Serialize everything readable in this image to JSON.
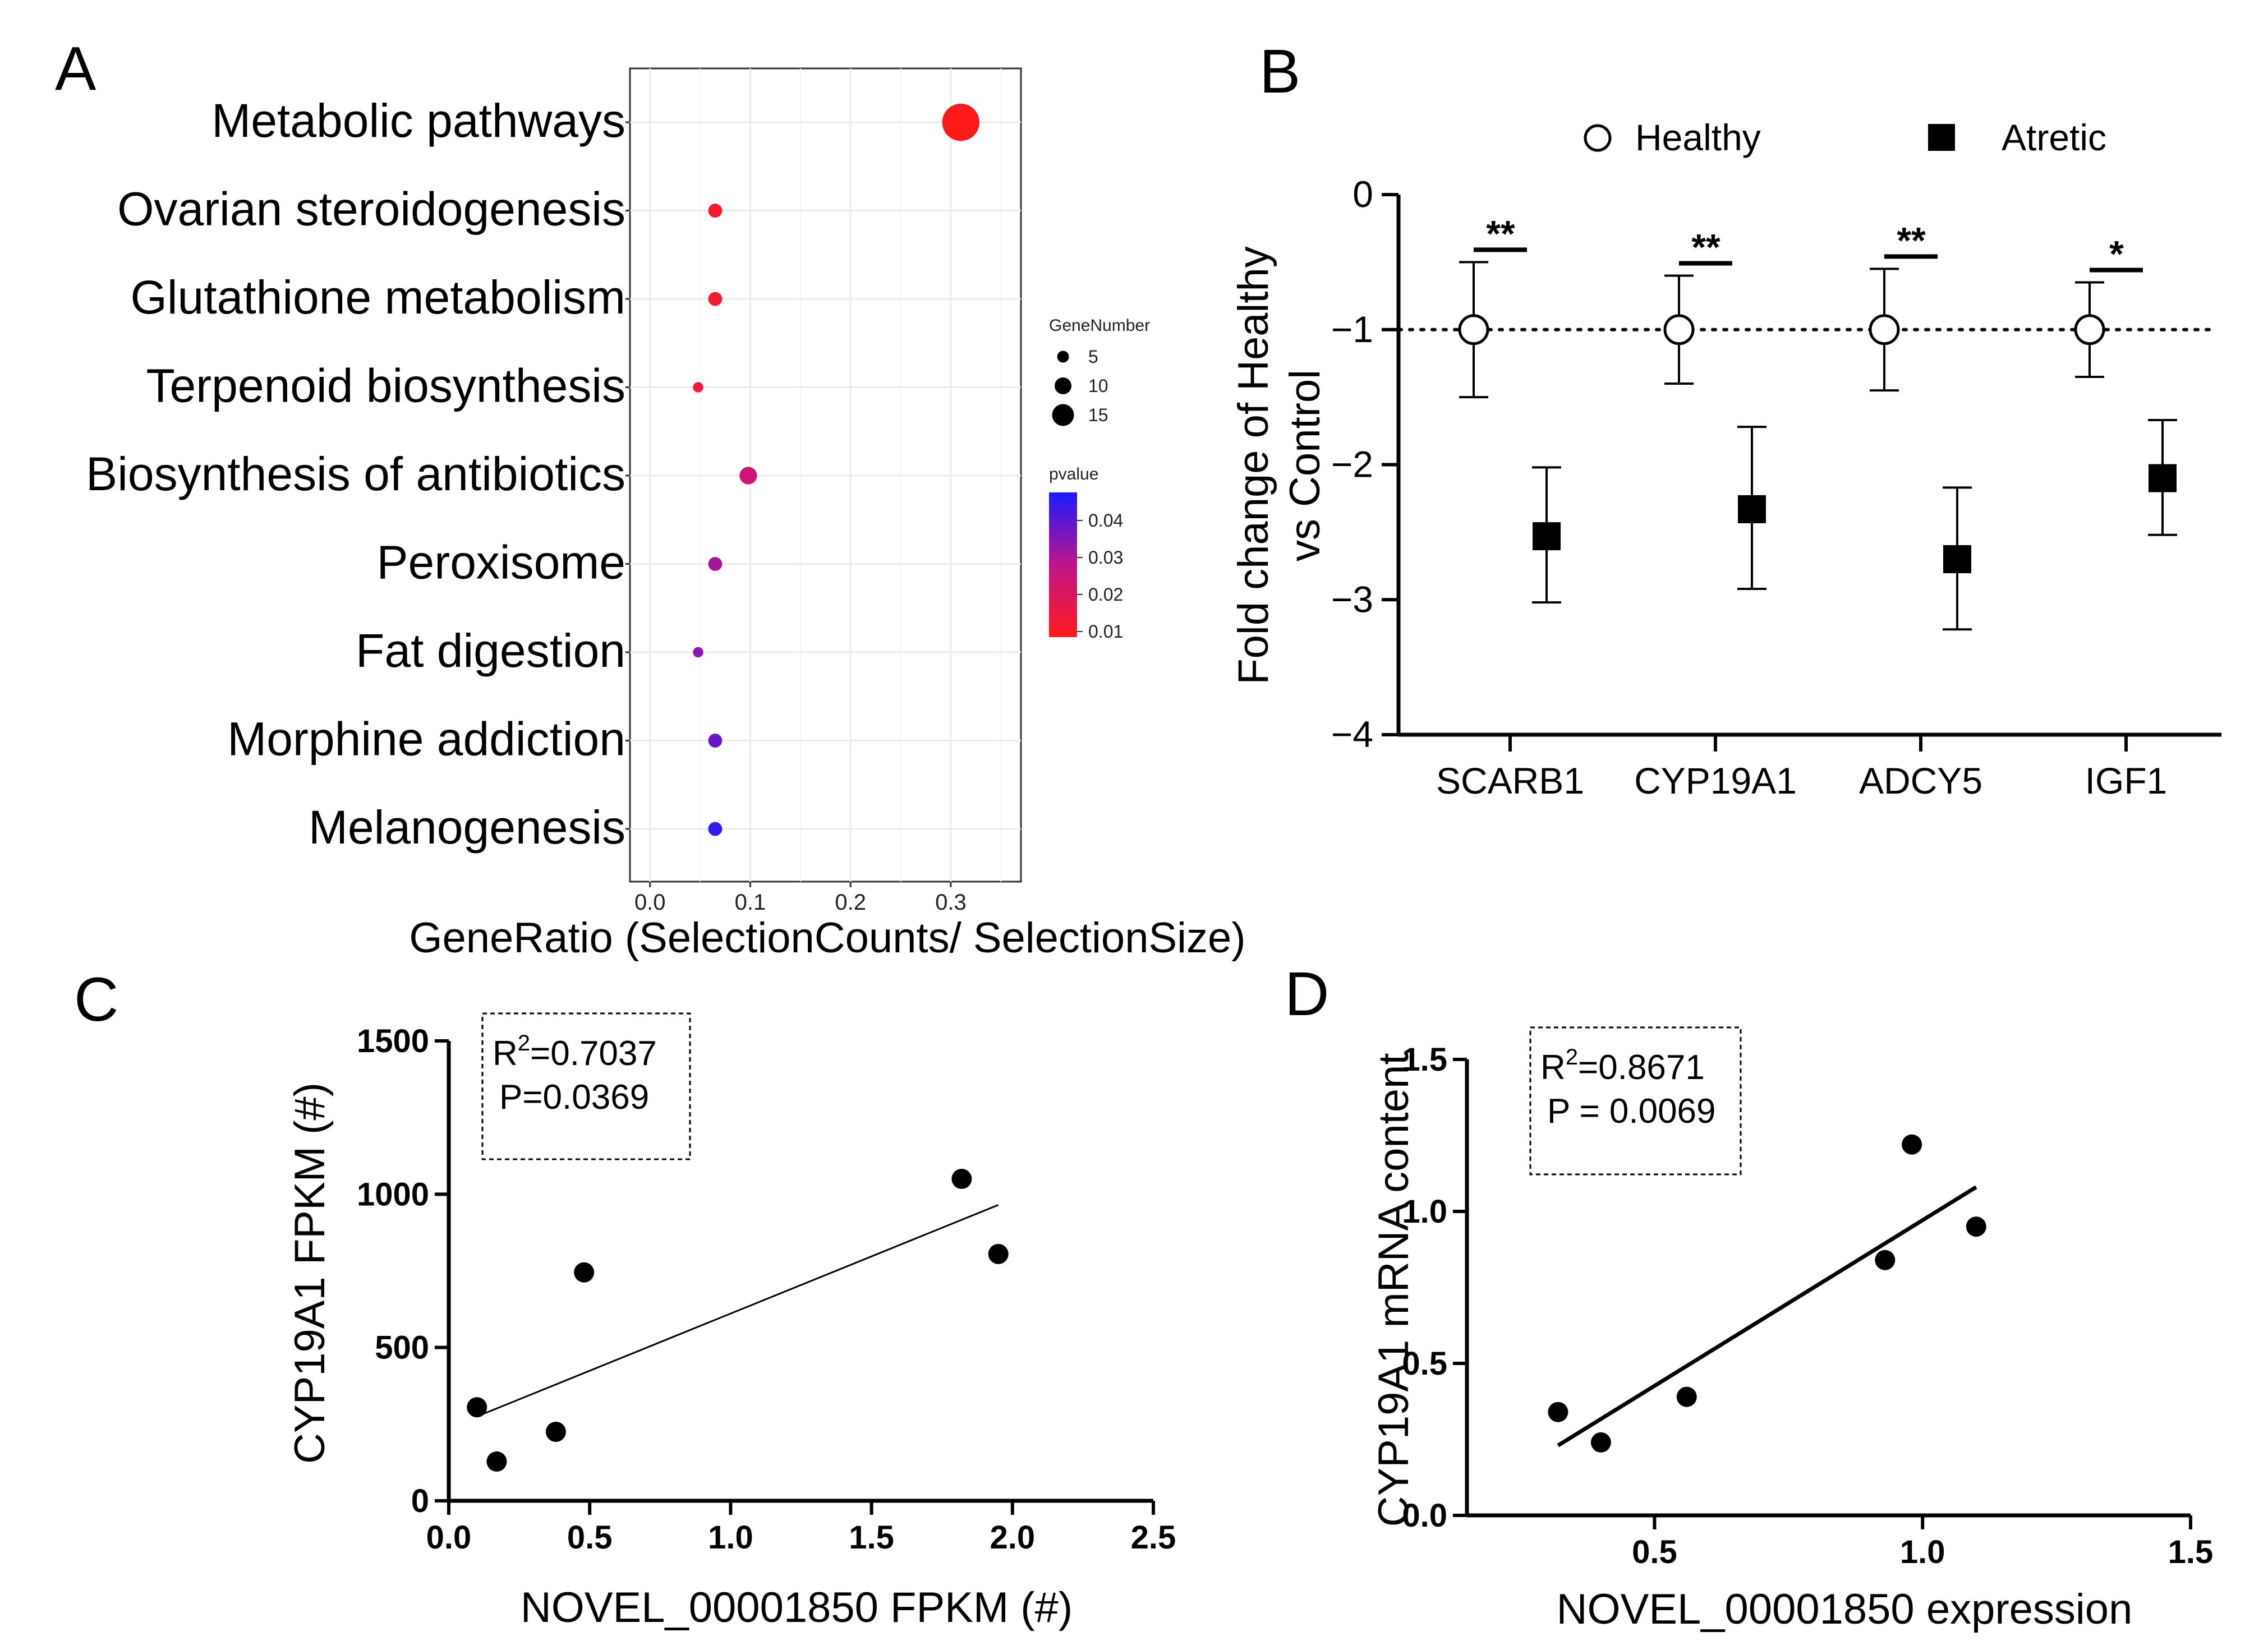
{
  "colors": {
    "pval_low": "#ff1a1a",
    "pval_mid": "#c0148a",
    "pval_high": "#1a1aff",
    "grid": "#ebebeb",
    "ink": "#000000"
  },
  "chart_data": [
    {
      "panel": "A",
      "type": "scatter",
      "title": "",
      "xlabel": "GeneRatio (SelectionCounts/ SelectionSize)",
      "ylabel": "",
      "xlim": [
        -0.02,
        0.37
      ],
      "xticks": [
        "0.0",
        "0.1",
        "0.2",
        "0.3"
      ],
      "categories": [
        "Metabolic pathways",
        "Ovarian steroidogenesis",
        "Glutathione metabolism",
        "Terpenoid biosynthesis",
        "Biosynthesis of antibiotics",
        "Peroxisome",
        "Fat digestion",
        "Morphine addiction",
        "Melanogenesis"
      ],
      "points": [
        {
          "term": "Metabolic pathways",
          "gene_ratio": 0.31,
          "gene_number": 17,
          "pvalue": 0.005
        },
        {
          "term": "Ovarian steroidogenesis",
          "gene_ratio": 0.065,
          "gene_number": 4,
          "pvalue": 0.008
        },
        {
          "term": "Glutathione metabolism",
          "gene_ratio": 0.065,
          "gene_number": 4,
          "pvalue": 0.009
        },
        {
          "term": "Terpenoid biosynthesis",
          "gene_ratio": 0.048,
          "gene_number": 2,
          "pvalue": 0.01
        },
        {
          "term": "Biosynthesis of antibiotics",
          "gene_ratio": 0.098,
          "gene_number": 6,
          "pvalue": 0.022
        },
        {
          "term": "Peroxisome",
          "gene_ratio": 0.065,
          "gene_number": 4,
          "pvalue": 0.03
        },
        {
          "term": "Fat digestion",
          "gene_ratio": 0.048,
          "gene_number": 2,
          "pvalue": 0.033
        },
        {
          "term": "Morphine addiction",
          "gene_ratio": 0.065,
          "gene_number": 4,
          "pvalue": 0.038
        },
        {
          "term": "Melanogenesis",
          "gene_ratio": 0.065,
          "gene_number": 4,
          "pvalue": 0.045
        }
      ],
      "legend_size_title": "GeneNumber",
      "legend_size_values": [
        "5",
        "10",
        "15"
      ],
      "legend_color_title": "pvalue",
      "legend_color_ticks": [
        "0.04",
        "0.03",
        "0.02",
        "0.01"
      ]
    },
    {
      "panel": "B",
      "type": "scatter",
      "title": "",
      "xlabel": "",
      "ylabel": "Fold change of Healthy vs Control",
      "ylabel_lines": [
        "Fold change of Healthy",
        "vs Control"
      ],
      "ylim": [
        -4,
        0
      ],
      "yticks": [
        "0",
        "−1",
        "−2",
        "−3",
        "−4"
      ],
      "categories": [
        "SCARB1",
        "CYP19A1",
        "ADCY5",
        "IGF1"
      ],
      "legend": [
        "Healthy",
        "Atretic"
      ],
      "reference_line": -1,
      "series": [
        {
          "name": "Healthy",
          "values": [
            -1,
            -1,
            -1,
            -1
          ],
          "err_low": [
            -1.5,
            -1.4,
            -1.45,
            -1.35
          ],
          "err_high": [
            -0.5,
            -0.6,
            -0.55,
            -0.65
          ]
        },
        {
          "name": "Atretic",
          "values": [
            -2.53,
            -2.33,
            -2.7,
            -2.1
          ],
          "err_low": [
            -3.02,
            -2.92,
            -3.22,
            -2.52
          ],
          "err_high": [
            -2.02,
            -1.72,
            -2.17,
            -1.67
          ]
        }
      ],
      "significance": [
        "**",
        "**",
        "**",
        "*"
      ]
    },
    {
      "panel": "C",
      "type": "scatter",
      "xlabel": "NOVEL_00001850 FPKM (#)",
      "ylabel": "CYP19A1  FPKM (#)",
      "xlim": [
        0,
        2.5
      ],
      "ylim": [
        0,
        1500
      ],
      "xticks": [
        "0.0",
        "0.5",
        "1.0",
        "1.5",
        "2.0",
        "2.5"
      ],
      "yticks": [
        "0",
        "500",
        "1000",
        "1500"
      ],
      "x": [
        0.1,
        0.17,
        0.38,
        0.48,
        1.82,
        1.95
      ],
      "y": [
        305,
        128,
        225,
        745,
        1050,
        805
      ],
      "fit": {
        "x": [
          0.1,
          1.95
        ],
        "y": [
          275,
          965
        ]
      },
      "stats": {
        "r2_prefix": "R",
        "r2_sup": "2",
        "r2_value": "=0.7037",
        "p": "P=0.0369"
      }
    },
    {
      "panel": "D",
      "type": "scatter",
      "xlabel": "NOVEL_00001850 expression",
      "ylabel": "CYP19A1 mRNA content",
      "xlim": [
        0.15,
        1.5
      ],
      "ylim": [
        0,
        1.5
      ],
      "xticks": [
        "0.5",
        "1.0",
        "1.5"
      ],
      "yticks": [
        "0.0",
        "0.5",
        "1.0",
        "1.5"
      ],
      "x": [
        0.32,
        0.4,
        0.56,
        0.93,
        0.98,
        1.1
      ],
      "y": [
        0.34,
        0.24,
        0.39,
        0.84,
        1.22,
        0.95
      ],
      "fit": {
        "x": [
          0.32,
          1.1
        ],
        "y": [
          0.23,
          1.08
        ]
      },
      "stats": {
        "r2_prefix": "R",
        "r2_sup": "2",
        "r2_value": "=0.8671",
        "p": "P = 0.0069"
      }
    }
  ]
}
